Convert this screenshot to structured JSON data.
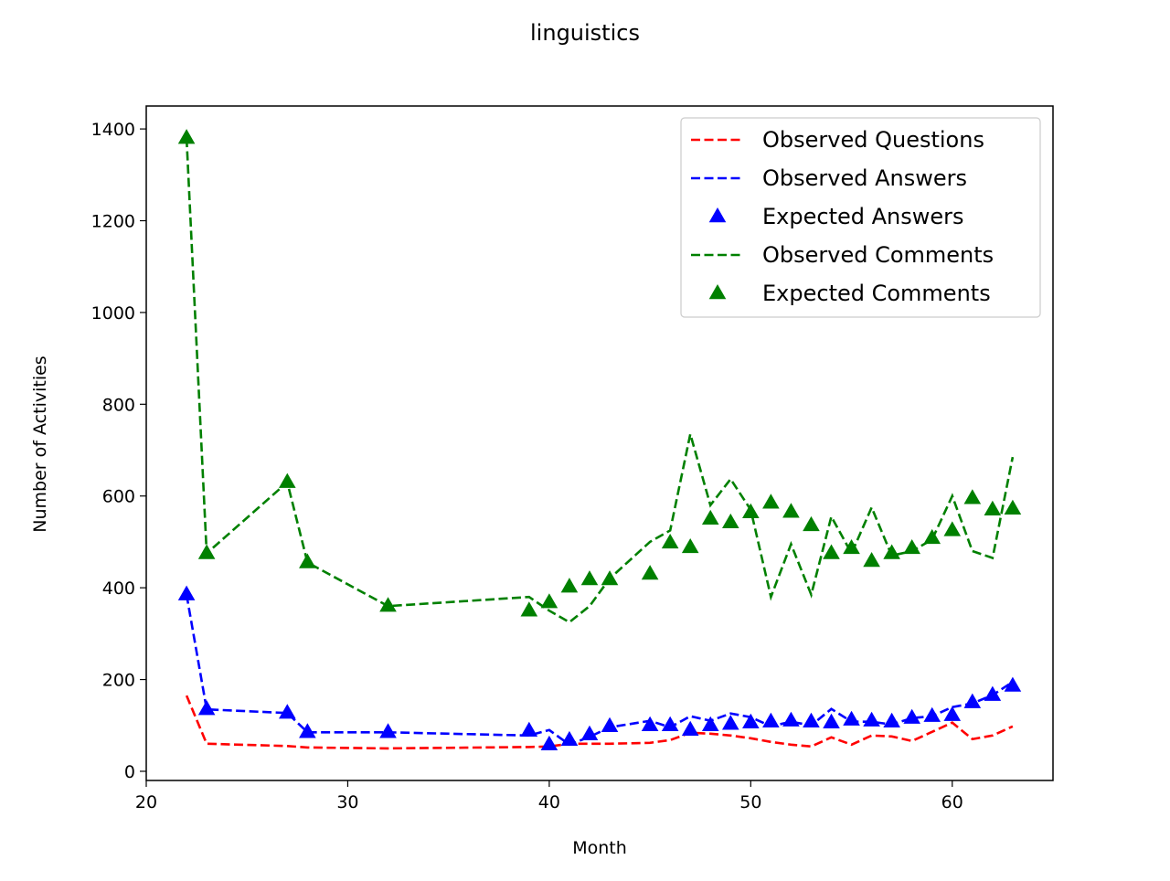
{
  "chart_data": {
    "type": "line",
    "title": "linguistics",
    "xlabel": "Month",
    "ylabel": "Number of Activities",
    "xlim": [
      20,
      65
    ],
    "ylim": [
      -20,
      1450
    ],
    "xticks": [
      20,
      30,
      40,
      50,
      60
    ],
    "yticks": [
      0,
      200,
      400,
      600,
      800,
      1000,
      1200,
      1400
    ],
    "grid": false,
    "legend_position": "top-right",
    "x": [
      22,
      23,
      27,
      28,
      32,
      39,
      40,
      41,
      42,
      43,
      45,
      46,
      47,
      48,
      49,
      50,
      51,
      52,
      53,
      54,
      55,
      56,
      57,
      58,
      59,
      60,
      61,
      62,
      63
    ],
    "series": [
      {
        "name": "Observed Questions",
        "style": "dashed-line",
        "color": "#ff0000",
        "values": [
          165,
          60,
          55,
          52,
          50,
          53,
          54,
          60,
          60,
          60,
          62,
          68,
          84,
          82,
          78,
          72,
          64,
          58,
          54,
          74,
          58,
          78,
          76,
          66,
          86,
          106,
          70,
          78,
          98
        ]
      },
      {
        "name": "Observed Answers",
        "style": "dashed-line",
        "color": "#0000ff",
        "values": [
          385,
          135,
          127,
          85,
          85,
          78,
          90,
          58,
          75,
          96,
          110,
          96,
          120,
          110,
          126,
          118,
          98,
          108,
          100,
          136,
          108,
          108,
          102,
          116,
          120,
          140,
          148,
          166,
          195
        ]
      },
      {
        "name": "Expected Answers",
        "style": "triangle-markers",
        "color": "#0000ff",
        "values": [
          385,
          135,
          127,
          85,
          85,
          88,
          58,
          68,
          80,
          98,
          100,
          100,
          90,
          100,
          103,
          106,
          108,
          110,
          108,
          106,
          112,
          110,
          108,
          116,
          120,
          122,
          150,
          166,
          186
        ]
      },
      {
        "name": "Observed Comments",
        "style": "dashed-line",
        "color": "#008000",
        "values": [
          1380,
          475,
          630,
          455,
          360,
          380,
          350,
          325,
          360,
          420,
          500,
          525,
          735,
          580,
          637,
          570,
          380,
          495,
          385,
          555,
          475,
          575,
          470,
          480,
          505,
          600,
          480,
          465,
          685
        ]
      },
      {
        "name": "Expected Comments",
        "style": "triangle-markers",
        "color": "#008000",
        "values": [
          1380,
          475,
          630,
          455,
          360,
          350,
          368,
          402,
          418,
          418,
          430,
          498,
          488,
          550,
          542,
          564,
          585,
          565,
          536,
          475,
          486,
          458,
          475,
          486,
          508,
          525,
          595,
          570,
          572
        ]
      }
    ]
  }
}
